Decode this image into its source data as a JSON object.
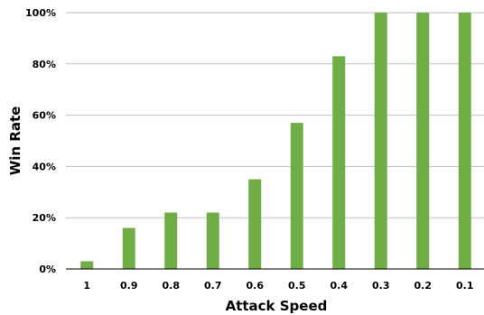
{
  "chart_data": {
    "type": "bar",
    "title": "",
    "xlabel": "Attack Speed",
    "ylabel": "Win Rate",
    "categories": [
      "1",
      "0.9",
      "0.8",
      "0.7",
      "0.6",
      "0.5",
      "0.4",
      "0.3",
      "0.2",
      "0.1"
    ],
    "values": [
      3,
      16,
      22,
      22,
      35,
      57,
      83,
      100,
      100,
      100
    ],
    "ylim": [
      0,
      100
    ],
    "yticks": [
      0,
      20,
      40,
      60,
      80,
      100
    ],
    "ytick_labels": [
      "0%",
      "20%",
      "40%",
      "60%",
      "80%",
      "100%"
    ],
    "grid": true,
    "legend": "none",
    "bar_color": "#70ad47",
    "grid_color": "#bfbfbf",
    "axis_color": "#000000"
  }
}
